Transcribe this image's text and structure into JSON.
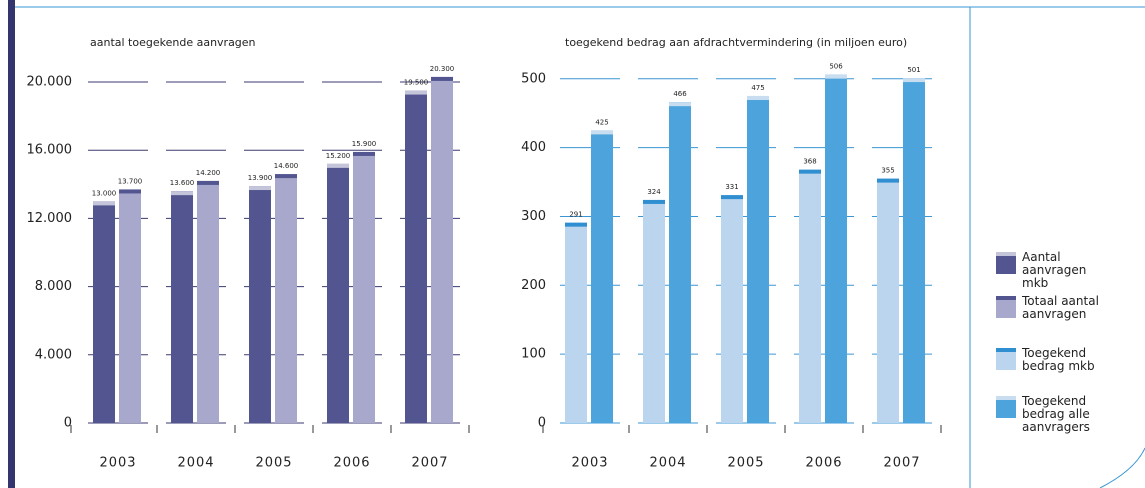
{
  "chart_data": [
    {
      "type": "bar",
      "title": "aantal toegekende aanvragen",
      "categories": [
        "2003",
        "2004",
        "2005",
        "2006",
        "2007"
      ],
      "series": [
        {
          "name": "Aantal aanvragen mkb",
          "color": "#525590",
          "cap_color": "#c4c4da",
          "values": [
            13000,
            13600,
            13900,
            15200,
            19500
          ],
          "value_labels": [
            "13.000",
            "13.600",
            "13.900",
            "15.200",
            "19.500"
          ]
        },
        {
          "name": "Totaal aantal aanvragen",
          "color": "#a8a8cc",
          "cap_color": "#525590",
          "values": [
            13700,
            14200,
            14600,
            15900,
            20300
          ],
          "value_labels": [
            "13.700",
            "14.200",
            "14.600",
            "15.900",
            "20.300"
          ]
        }
      ],
      "ylim": [
        0,
        21000
      ],
      "yticks": [
        0,
        {
          "value": 4000,
          "label": "4.000"
        },
        {
          "value": 8000,
          "label": "8.000"
        },
        {
          "value": 12000,
          "label": "12.000"
        },
        {
          "value": 16000,
          "label": "16.000"
        },
        {
          "value": 20000,
          "label": "20.000"
        }
      ],
      "grid": true,
      "grid_color": "#3a3a70"
    },
    {
      "type": "bar",
      "title": "toegekend bedrag aan afdrachtvermindering  (in miljoen euro)",
      "categories": [
        "2003",
        "2004",
        "2005",
        "2006",
        "2007"
      ],
      "series": [
        {
          "name": "Toegekend bedrag mkb",
          "color": "#bcd5ee",
          "cap_color": "#2f8fd0",
          "values": [
            291,
            324,
            331,
            368,
            355
          ]
        },
        {
          "name": "Toegekend bedrag alle aanvragers",
          "color": "#4da3dc",
          "cap_color": "#c8def0",
          "values": [
            425,
            466,
            475,
            506,
            501
          ]
        }
      ],
      "ylim": [
        0,
        520
      ],
      "yticks": [
        0,
        100,
        200,
        300,
        400,
        500
      ],
      "grid": true,
      "grid_color": "#3a96d4"
    }
  ]
}
